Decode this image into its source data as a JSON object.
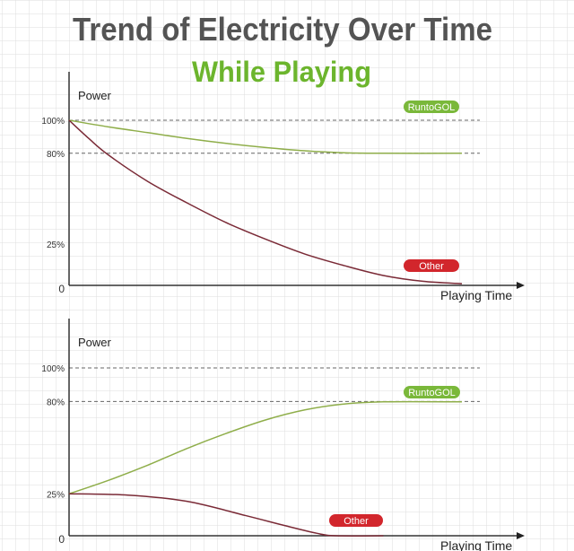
{
  "title": "Trend of Electricity Over Time",
  "subtitle": "While Playing",
  "colors": {
    "title": "#545454",
    "subtitle": "#6cb52d",
    "green": "#8fae4a",
    "red": "#7a2a36",
    "green_badge": "#7ab83a",
    "red_badge": "#d2262c",
    "grid": "#dcdcdc"
  },
  "chart_data": [
    {
      "type": "line",
      "ylabel": "Power",
      "xlabel": "Playing Time",
      "yticks": [
        "100%",
        "80%",
        "25%",
        "0"
      ],
      "ytick_values": [
        100,
        80,
        25,
        0
      ],
      "ylim": [
        0,
        100
      ],
      "xlim": [
        0,
        100
      ],
      "series": [
        {
          "name": "RuntoGOL",
          "color": "green",
          "points": [
            [
              0,
              100
            ],
            [
              10,
              96
            ],
            [
              20,
              92.5
            ],
            [
              30,
              89
            ],
            [
              40,
              86
            ],
            [
              50,
              83.5
            ],
            [
              60,
              81.5
            ],
            [
              70,
              80.3
            ],
            [
              80,
              80
            ],
            [
              100,
              80
            ]
          ]
        },
        {
          "name": "Other",
          "color": "red",
          "points": [
            [
              0,
              100
            ],
            [
              5,
              89
            ],
            [
              10,
              79
            ],
            [
              20,
              63
            ],
            [
              30,
              50
            ],
            [
              40,
              38
            ],
            [
              50,
              28
            ],
            [
              60,
              19
            ],
            [
              70,
              12
            ],
            [
              80,
              6
            ],
            [
              90,
              2.5
            ],
            [
              100,
              1
            ]
          ]
        }
      ]
    },
    {
      "type": "line",
      "ylabel": "Power",
      "xlabel": "Playing Time",
      "yticks": [
        "100%",
        "80%",
        "25%",
        "0"
      ],
      "ytick_values": [
        100,
        80,
        25,
        0
      ],
      "ylim": [
        0,
        100
      ],
      "xlim": [
        0,
        100
      ],
      "series": [
        {
          "name": "RuntoGOL",
          "color": "green",
          "points": [
            [
              0,
              25
            ],
            [
              10,
              33
            ],
            [
              20,
              42
            ],
            [
              30,
              52
            ],
            [
              40,
              61
            ],
            [
              50,
              69
            ],
            [
              60,
              75
            ],
            [
              70,
              78.5
            ],
            [
              80,
              79.8
            ],
            [
              100,
              79.8
            ]
          ]
        },
        {
          "name": "Other",
          "color": "red",
          "points": [
            [
              0,
              25
            ],
            [
              15,
              24.2
            ],
            [
              30,
              20.5
            ],
            [
              45,
              12
            ],
            [
              55,
              6
            ],
            [
              63,
              1.5
            ],
            [
              68,
              0
            ],
            [
              80,
              0
            ]
          ]
        }
      ]
    }
  ]
}
